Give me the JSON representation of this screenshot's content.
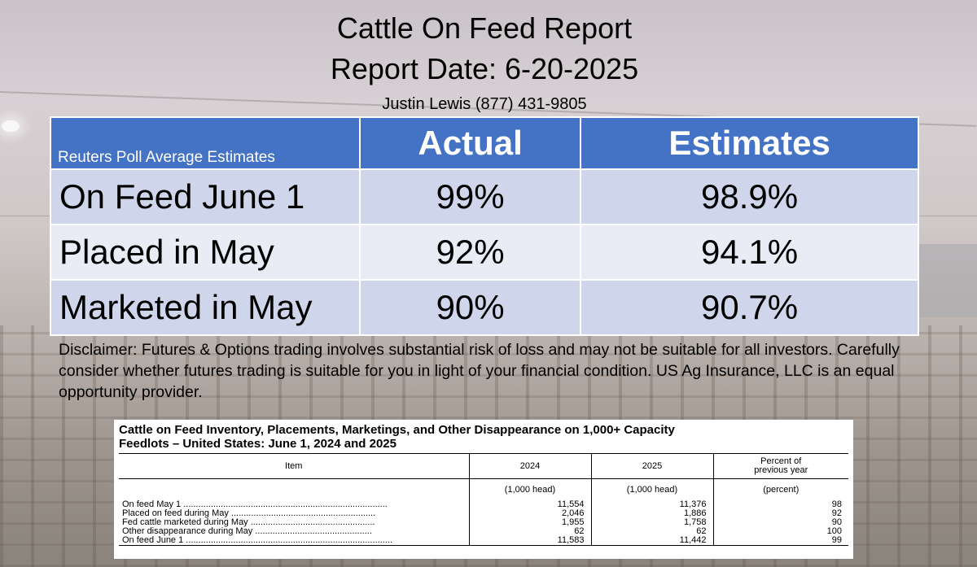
{
  "header": {
    "title": "Cattle On Feed Report",
    "report_date": "Report Date: 6-20-2025",
    "contact": "Justin Lewis (877) 431-9805"
  },
  "summary_table": {
    "corner_label": "Reuters Poll Average Estimates",
    "columns": [
      "Actual",
      "Estimates"
    ],
    "rows": [
      {
        "label": "On Feed June 1",
        "actual": "99%",
        "estimate": "98.9%"
      },
      {
        "label": "Placed in May",
        "actual": "92%",
        "estimate": "94.1%"
      },
      {
        "label": "Marketed in May",
        "actual": "90%",
        "estimate": "90.7%"
      }
    ]
  },
  "disclaimer": "Disclaimer:  Futures & Options trading involves substantial risk of loss and may not be suitable for all investors.  Carefully consider whether futures trading is suitable for you in light of your financial condition. US Ag Insurance, LLC is an equal opportunity provider.",
  "report": {
    "title_line1": "Cattle on Feed Inventory, Placements, Marketings, and Other Disappearance on 1,000+ Capacity",
    "title_line2": "Feedlots – United States: June 1, 2024 and 2025",
    "columns": {
      "item": "Item",
      "y2024": "2024",
      "y2025": "2025",
      "pct_line1": "Percent of",
      "pct_line2": "previous year"
    },
    "units": {
      "y2024": "(1,000 head)",
      "y2025": "(1,000 head)",
      "pct": "(percent)"
    },
    "rows": [
      {
        "item": "On feed May 1 ..................................................................................",
        "v2024": "11,554",
        "v2025": "11,376",
        "pct": "98"
      },
      {
        "item": "Placed on feed during May ..........................................................",
        "v2024": "2,046",
        "v2025": "1,886",
        "pct": "92"
      },
      {
        "item": "Fed cattle marketed during May ..................................................",
        "v2024": "1,955",
        "v2025": "1,758",
        "pct": "90"
      },
      {
        "item": "Other disappearance during May ...............................................",
        "v2024": "62",
        "v2025": "62",
        "pct": "100"
      },
      {
        "item": "On feed June 1 ...................................................................................",
        "v2024": "11,583",
        "v2025": "11,442",
        "pct": "99"
      }
    ]
  }
}
